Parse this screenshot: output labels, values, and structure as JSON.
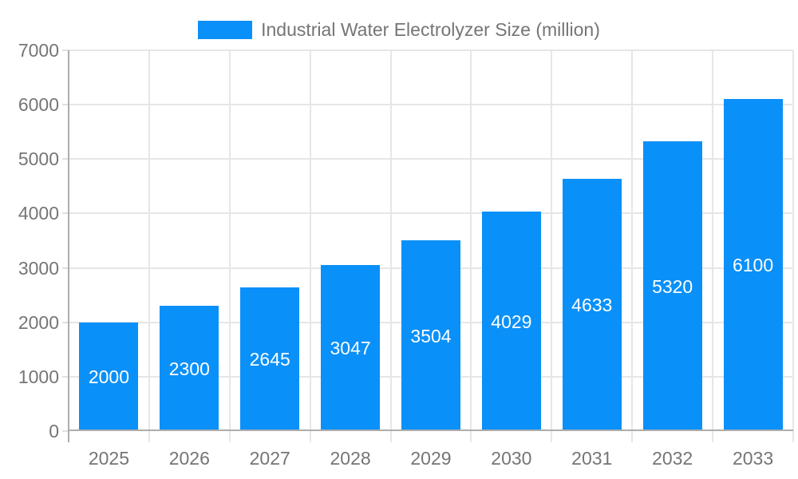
{
  "legend": {
    "series_label": "Industrial Water Electrolyzer Size (million)"
  },
  "colors": {
    "bar": "#0A90F9",
    "grid": "#e6e6e6",
    "tick": "#e0e0e0",
    "axis": "#adadad",
    "axis_label": "#757575",
    "bar_label": "#ffffff",
    "background": "#ffffff"
  },
  "chart_data": {
    "type": "bar",
    "title": "Industrial Water Electrolyzer Size (million)",
    "categories": [
      "2025",
      "2026",
      "2027",
      "2028",
      "2029",
      "2030",
      "2031",
      "2032",
      "2033"
    ],
    "values": [
      2000,
      2300,
      2645,
      3047,
      3504,
      4029,
      4633,
      5320,
      6100
    ],
    "xlabel": "",
    "ylabel": "",
    "ylim": [
      0,
      7000
    ],
    "yticks": [
      0,
      1000,
      2000,
      3000,
      4000,
      5000,
      6000,
      7000
    ],
    "grid": "both",
    "legend_position": "top-center",
    "bar_labels_position": "inside-center"
  }
}
